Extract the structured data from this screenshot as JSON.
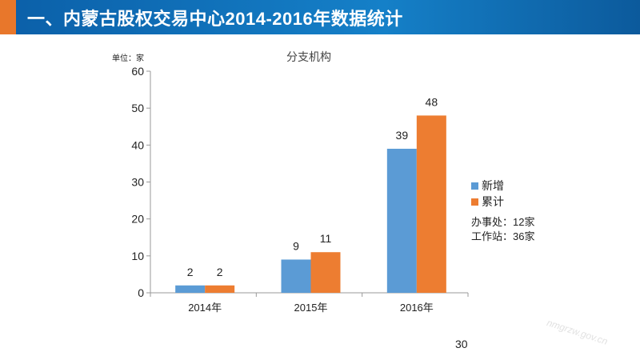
{
  "header": {
    "title": "一、内蒙古股权交易中心2014-2016年数据统计"
  },
  "chart_data": {
    "type": "bar",
    "title": "分支机构",
    "ylabel": "单位：家",
    "xlabel": "",
    "categories": [
      "2014年",
      "2015年",
      "2016年"
    ],
    "series": [
      {
        "name": "新增",
        "color": "#5b9bd5",
        "values": [
          2,
          9,
          39
        ]
      },
      {
        "name": "累计",
        "color": "#ed7d31",
        "values": [
          2,
          11,
          48
        ]
      }
    ],
    "ylim": [
      0,
      60
    ],
    "yticks": [
      0,
      10,
      20,
      30,
      40,
      50,
      60
    ],
    "grid": false,
    "legend": "right"
  },
  "notes": [
    "办事处：12家",
    "工作站：36家"
  ],
  "page_number": "30",
  "watermark": "nmgrzw.gov.cn"
}
